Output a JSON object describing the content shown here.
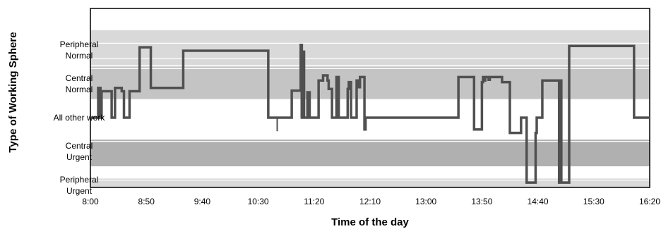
{
  "chart_data": {
    "type": "line",
    "line_style": "step",
    "xlabel": "Time of the day",
    "ylabel": "Type of Working Sphere",
    "x_ticks": [
      "8:00",
      "8:50",
      "9:40",
      "10:30",
      "11:20",
      "12:10",
      "13:00",
      "13:50",
      "14:40",
      "15:30",
      "16:20"
    ],
    "x_tick_minutes": [
      0,
      50,
      100,
      150,
      200,
      250,
      300,
      350,
      400,
      450,
      500
    ],
    "xlim_minutes": [
      0,
      500
    ],
    "categories": [
      {
        "key": "PN",
        "lines": [
          "Peripheral",
          "Normal"
        ]
      },
      {
        "key": "CN",
        "lines": [
          "Central",
          "Normal"
        ]
      },
      {
        "key": "AO",
        "lines": [
          "All other work"
        ]
      },
      {
        "key": "CU",
        "lines": [
          "Central",
          "Urgent"
        ]
      },
      {
        "key": "PU",
        "lines": [
          "Peripheral",
          "Urgent"
        ]
      }
    ],
    "category_values": {
      "PN": 5,
      "CN": 4,
      "AO": 3,
      "CU": 2,
      "PU": 1
    },
    "bands": [
      {
        "from": 4.5,
        "to": 5.6,
        "color": "#d9d9d9"
      },
      {
        "from": 3.55,
        "to": 4.5,
        "color": "#c4c4c4"
      },
      {
        "from": 1.55,
        "to": 2.35,
        "color": "#b0b0b0"
      },
      {
        "from": 0.9,
        "to": 1.2,
        "color": "#d9d9d9"
      }
    ],
    "grid_levels": [
      5.6,
      5.2,
      4.75,
      4.55,
      4.45,
      3.45,
      3.3,
      3.15,
      2.75,
      2.6,
      2.45,
      2.3,
      1.55,
      1.45,
      1.3,
      1.15
    ],
    "points": [
      [
        0,
        3
      ],
      [
        7,
        3
      ],
      [
        7,
        3.88
      ],
      [
        9,
        3.88
      ],
      [
        9,
        3
      ],
      [
        10,
        3
      ],
      [
        10,
        3.78
      ],
      [
        19,
        3.78
      ],
      [
        19,
        3
      ],
      [
        22,
        3
      ],
      [
        22,
        3.88
      ],
      [
        28,
        3.88
      ],
      [
        28,
        3.78
      ],
      [
        30,
        3.78
      ],
      [
        30,
        3
      ],
      [
        35,
        3
      ],
      [
        35,
        3.78
      ],
      [
        44,
        3.78
      ],
      [
        44,
        5.08
      ],
      [
        54,
        5.08
      ],
      [
        54,
        3.88
      ],
      [
        83,
        3.88
      ],
      [
        83,
        4.98
      ],
      [
        159,
        4.98
      ],
      [
        159,
        3
      ],
      [
        168,
        3
      ],
      [
        168,
        3
      ],
      [
        180,
        3
      ],
      [
        180,
        3.8
      ],
      [
        188,
        3.8
      ],
      [
        188,
        5.15
      ],
      [
        189,
        5.15
      ],
      [
        189,
        3
      ],
      [
        190,
        3
      ],
      [
        190,
        4.95
      ],
      [
        191,
        4.95
      ],
      [
        191,
        3
      ],
      [
        194,
        3
      ],
      [
        194,
        3.75
      ],
      [
        196,
        3.75
      ],
      [
        196,
        3
      ],
      [
        204,
        3
      ],
      [
        204,
        4.1
      ],
      [
        208,
        4.1
      ],
      [
        208,
        4.25
      ],
      [
        212,
        4.25
      ],
      [
        212,
        4.1
      ],
      [
        213,
        4.1
      ],
      [
        213,
        3.85
      ],
      [
        216,
        3.85
      ],
      [
        216,
        3
      ],
      [
        220,
        3
      ],
      [
        220,
        4.2
      ],
      [
        222,
        4.2
      ],
      [
        222,
        3
      ],
      [
        230,
        3
      ],
      [
        230,
        3.85
      ],
      [
        231,
        3.85
      ],
      [
        231,
        4.05
      ],
      [
        233,
        4.05
      ],
      [
        233,
        3
      ],
      [
        238,
        3
      ],
      [
        238,
        4.1
      ],
      [
        239,
        4.1
      ],
      [
        239,
        3.9
      ],
      [
        241,
        3.9
      ],
      [
        241,
        4.2
      ],
      [
        245,
        4.2
      ],
      [
        245,
        2.65
      ],
      [
        246,
        2.65
      ],
      [
        246,
        3
      ],
      [
        329,
        3
      ],
      [
        329,
        4.2
      ],
      [
        343,
        4.2
      ],
      [
        343,
        2.65
      ],
      [
        350,
        2.65
      ],
      [
        350,
        4.05
      ],
      [
        351,
        4.05
      ],
      [
        351,
        4.2
      ],
      [
        352,
        4.2
      ],
      [
        352,
        4.1
      ],
      [
        353,
        4.1
      ],
      [
        353,
        4.2
      ],
      [
        356,
        4.2
      ],
      [
        356,
        4.12
      ],
      [
        357,
        4.12
      ],
      [
        357,
        4.2
      ],
      [
        368,
        4.2
      ],
      [
        368,
        4.05
      ],
      [
        375,
        4.05
      ],
      [
        375,
        2.55
      ],
      [
        385,
        2.55
      ],
      [
        385,
        3
      ],
      [
        390,
        3
      ],
      [
        390,
        1.08
      ],
      [
        398,
        1.08
      ],
      [
        398,
        2.55
      ],
      [
        399,
        2.55
      ],
      [
        399,
        3
      ],
      [
        404,
        3
      ],
      [
        404,
        4.1
      ],
      [
        419,
        4.1
      ],
      [
        419,
        1.08
      ],
      [
        420,
        1.08
      ],
      [
        420,
        4.1
      ],
      [
        421,
        4.1
      ],
      [
        421,
        1.08
      ],
      [
        428,
        1.08
      ],
      [
        428,
        5.12
      ],
      [
        486,
        5.12
      ],
      [
        486,
        3
      ],
      [
        500,
        3
      ]
    ],
    "spike_segments": [
      {
        "x": 167,
        "y_from": 3,
        "y_to": 2.6
      },
      {
        "x": 188.5,
        "y_from": 3,
        "y_to": 5.12
      }
    ],
    "line_color": "#505050",
    "grid": true
  }
}
